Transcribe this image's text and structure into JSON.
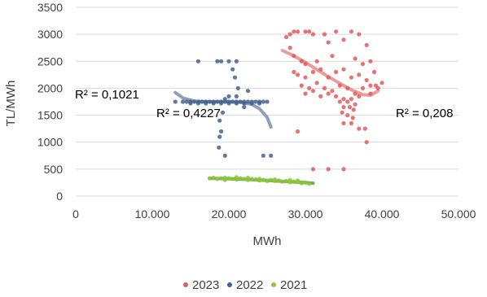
{
  "chart_data": {
    "type": "scatter",
    "title": "",
    "xlabel": "MWh",
    "ylabel": "TL/MWh",
    "xlim": [
      0,
      50000
    ],
    "ylim": [
      0,
      3500
    ],
    "xticks": [
      0,
      10000,
      20000,
      30000,
      40000,
      50000
    ],
    "xtick_labels": [
      "0",
      "10.000",
      "20.000",
      "30.000",
      "40.000",
      "50.000"
    ],
    "yticks": [
      0,
      500,
      1000,
      1500,
      2000,
      2500,
      3000,
      3500
    ],
    "ytick_labels": [
      "0",
      "500",
      "1000",
      "1500",
      "2000",
      "2500",
      "3000",
      "3500"
    ],
    "grid": "horizontal",
    "legend_position": "bottom",
    "series": [
      {
        "name": "2023",
        "color": "#e05c5c",
        "trend_color": "#e8898a",
        "r2_label": "R² = 0,208",
        "trend_x": [
          27000,
          28500,
          30000,
          32000,
          34000,
          36000,
          37500,
          38500,
          39500
        ],
        "trend_y": [
          2700,
          2600,
          2480,
          2300,
          2130,
          1970,
          1880,
          1870,
          1950
        ],
        "points": [
          [
            27500,
            2950
          ],
          [
            28000,
            3000
          ],
          [
            28500,
            3050
          ],
          [
            29000,
            3050
          ],
          [
            30000,
            3050
          ],
          [
            30500,
            3050
          ],
          [
            31000,
            3000
          ],
          [
            32500,
            3000
          ],
          [
            34000,
            3050
          ],
          [
            36000,
            3050
          ],
          [
            37000,
            3000
          ],
          [
            33000,
            2850
          ],
          [
            35000,
            2900
          ],
          [
            38000,
            2800
          ],
          [
            28000,
            2750
          ],
          [
            28500,
            2600
          ],
          [
            29500,
            2500
          ],
          [
            30000,
            2450
          ],
          [
            31500,
            2500
          ],
          [
            33500,
            2600
          ],
          [
            36500,
            2550
          ],
          [
            38500,
            2500
          ],
          [
            37500,
            2450
          ],
          [
            28500,
            2300
          ],
          [
            29000,
            2250
          ],
          [
            30000,
            2200
          ],
          [
            31000,
            2300
          ],
          [
            32000,
            2350
          ],
          [
            33000,
            2200
          ],
          [
            34000,
            2300
          ],
          [
            35000,
            2350
          ],
          [
            36000,
            2200
          ],
          [
            37000,
            2250
          ],
          [
            38000,
            2150
          ],
          [
            39000,
            2300
          ],
          [
            40000,
            2100
          ],
          [
            29500,
            2050
          ],
          [
            30500,
            2000
          ],
          [
            31500,
            2100
          ],
          [
            32500,
            2000
          ],
          [
            33500,
            1950
          ],
          [
            34500,
            2050
          ],
          [
            35500,
            2000
          ],
          [
            36500,
            1900
          ],
          [
            37500,
            2000
          ],
          [
            38500,
            2050
          ],
          [
            39500,
            2000
          ],
          [
            30000,
            1900
          ],
          [
            31000,
            1950
          ],
          [
            32000,
            1850
          ],
          [
            33000,
            1900
          ],
          [
            34000,
            1850
          ],
          [
            35000,
            1800
          ],
          [
            36000,
            1800
          ],
          [
            34500,
            1750
          ],
          [
            35500,
            1750
          ],
          [
            36500,
            1700
          ],
          [
            35000,
            1650
          ],
          [
            35800,
            1650
          ],
          [
            36300,
            1600
          ],
          [
            34800,
            1550
          ],
          [
            35500,
            1500
          ],
          [
            36200,
            1450
          ],
          [
            35000,
            1350
          ],
          [
            36000,
            1350
          ],
          [
            37000,
            1250
          ],
          [
            37800,
            1250
          ],
          [
            38000,
            1000
          ],
          [
            29000,
            1200
          ],
          [
            31000,
            500
          ],
          [
            33000,
            500
          ],
          [
            35000,
            500
          ],
          [
            37000,
            1850
          ],
          [
            38500,
            1900
          ],
          [
            39200,
            2050
          ]
        ]
      },
      {
        "name": "2022",
        "color": "#44618f",
        "trend_color": "#7d8fb0",
        "r2_label": "R² = 0,1021",
        "r2_label_2": "R² = 0,4227",
        "trend_x": [
          13000,
          14000,
          15500,
          17000,
          18500,
          20000,
          21500,
          23000,
          24000,
          25000,
          25500
        ],
        "trend_y": [
          1920,
          1820,
          1760,
          1750,
          1750,
          1750,
          1740,
          1700,
          1620,
          1460,
          1280
        ],
        "points": [
          [
            14000,
            1750
          ],
          [
            14500,
            1750
          ],
          [
            15000,
            1750
          ],
          [
            15500,
            1750
          ],
          [
            16000,
            1750
          ],
          [
            16500,
            1750
          ],
          [
            17000,
            1750
          ],
          [
            17500,
            1750
          ],
          [
            18000,
            1750
          ],
          [
            18500,
            1750
          ],
          [
            19000,
            1750
          ],
          [
            19500,
            1750
          ],
          [
            20000,
            1750
          ],
          [
            20500,
            1750
          ],
          [
            21000,
            1750
          ],
          [
            21500,
            1750
          ],
          [
            22000,
            1750
          ],
          [
            22500,
            1750
          ],
          [
            23000,
            1750
          ],
          [
            23500,
            1750
          ],
          [
            24000,
            1750
          ],
          [
            24500,
            1750
          ],
          [
            25000,
            1750
          ],
          [
            15000,
            1720
          ],
          [
            16000,
            1720
          ],
          [
            17000,
            1720
          ],
          [
            18000,
            1720
          ],
          [
            19000,
            1720
          ],
          [
            20000,
            1720
          ],
          [
            21000,
            1720
          ],
          [
            22000,
            1720
          ],
          [
            23000,
            1720
          ],
          [
            24000,
            1720
          ],
          [
            16000,
            2500
          ],
          [
            18500,
            2500
          ],
          [
            19000,
            2500
          ],
          [
            20000,
            2500
          ],
          [
            21000,
            2500
          ],
          [
            20500,
            2350
          ],
          [
            20800,
            2200
          ],
          [
            21200,
            2000
          ],
          [
            22500,
            1950
          ],
          [
            19500,
            1800
          ],
          [
            20000,
            1850
          ],
          [
            21000,
            1850
          ],
          [
            22000,
            1650
          ],
          [
            19200,
            1550
          ],
          [
            18800,
            1400
          ],
          [
            19000,
            1200
          ],
          [
            18800,
            1100
          ],
          [
            18700,
            900
          ],
          [
            19500,
            750
          ],
          [
            24500,
            750
          ],
          [
            25500,
            750
          ],
          [
            13000,
            1750
          ]
        ]
      },
      {
        "name": "2021",
        "color": "#8dc63f",
        "trend_color": "#5a9c28",
        "trend_x": [
          17500,
          20000,
          22500,
          25000,
          27500,
          30000,
          31000
        ],
        "trend_y": [
          330,
          320,
          310,
          290,
          270,
          250,
          240
        ],
        "points": [
          [
            17500,
            330
          ],
          [
            18000,
            340
          ],
          [
            18500,
            320
          ],
          [
            19000,
            330
          ],
          [
            19500,
            340
          ],
          [
            20000,
            330
          ],
          [
            20500,
            320
          ],
          [
            21000,
            310
          ],
          [
            21500,
            330
          ],
          [
            22000,
            320
          ],
          [
            22500,
            300
          ],
          [
            23000,
            320
          ],
          [
            23500,
            310
          ],
          [
            24000,
            290
          ],
          [
            24500,
            300
          ],
          [
            25000,
            280
          ],
          [
            25500,
            300
          ],
          [
            26000,
            280
          ],
          [
            26500,
            290
          ],
          [
            27000,
            270
          ],
          [
            27500,
            280
          ],
          [
            28000,
            260
          ],
          [
            28500,
            270
          ],
          [
            29000,
            260
          ],
          [
            29500,
            240
          ],
          [
            30000,
            250
          ],
          [
            30500,
            230
          ],
          [
            19500,
            300
          ],
          [
            21000,
            350
          ],
          [
            22500,
            340
          ],
          [
            24000,
            320
          ],
          [
            26000,
            310
          ],
          [
            28000,
            300
          ],
          [
            29000,
            290
          ]
        ]
      }
    ]
  }
}
